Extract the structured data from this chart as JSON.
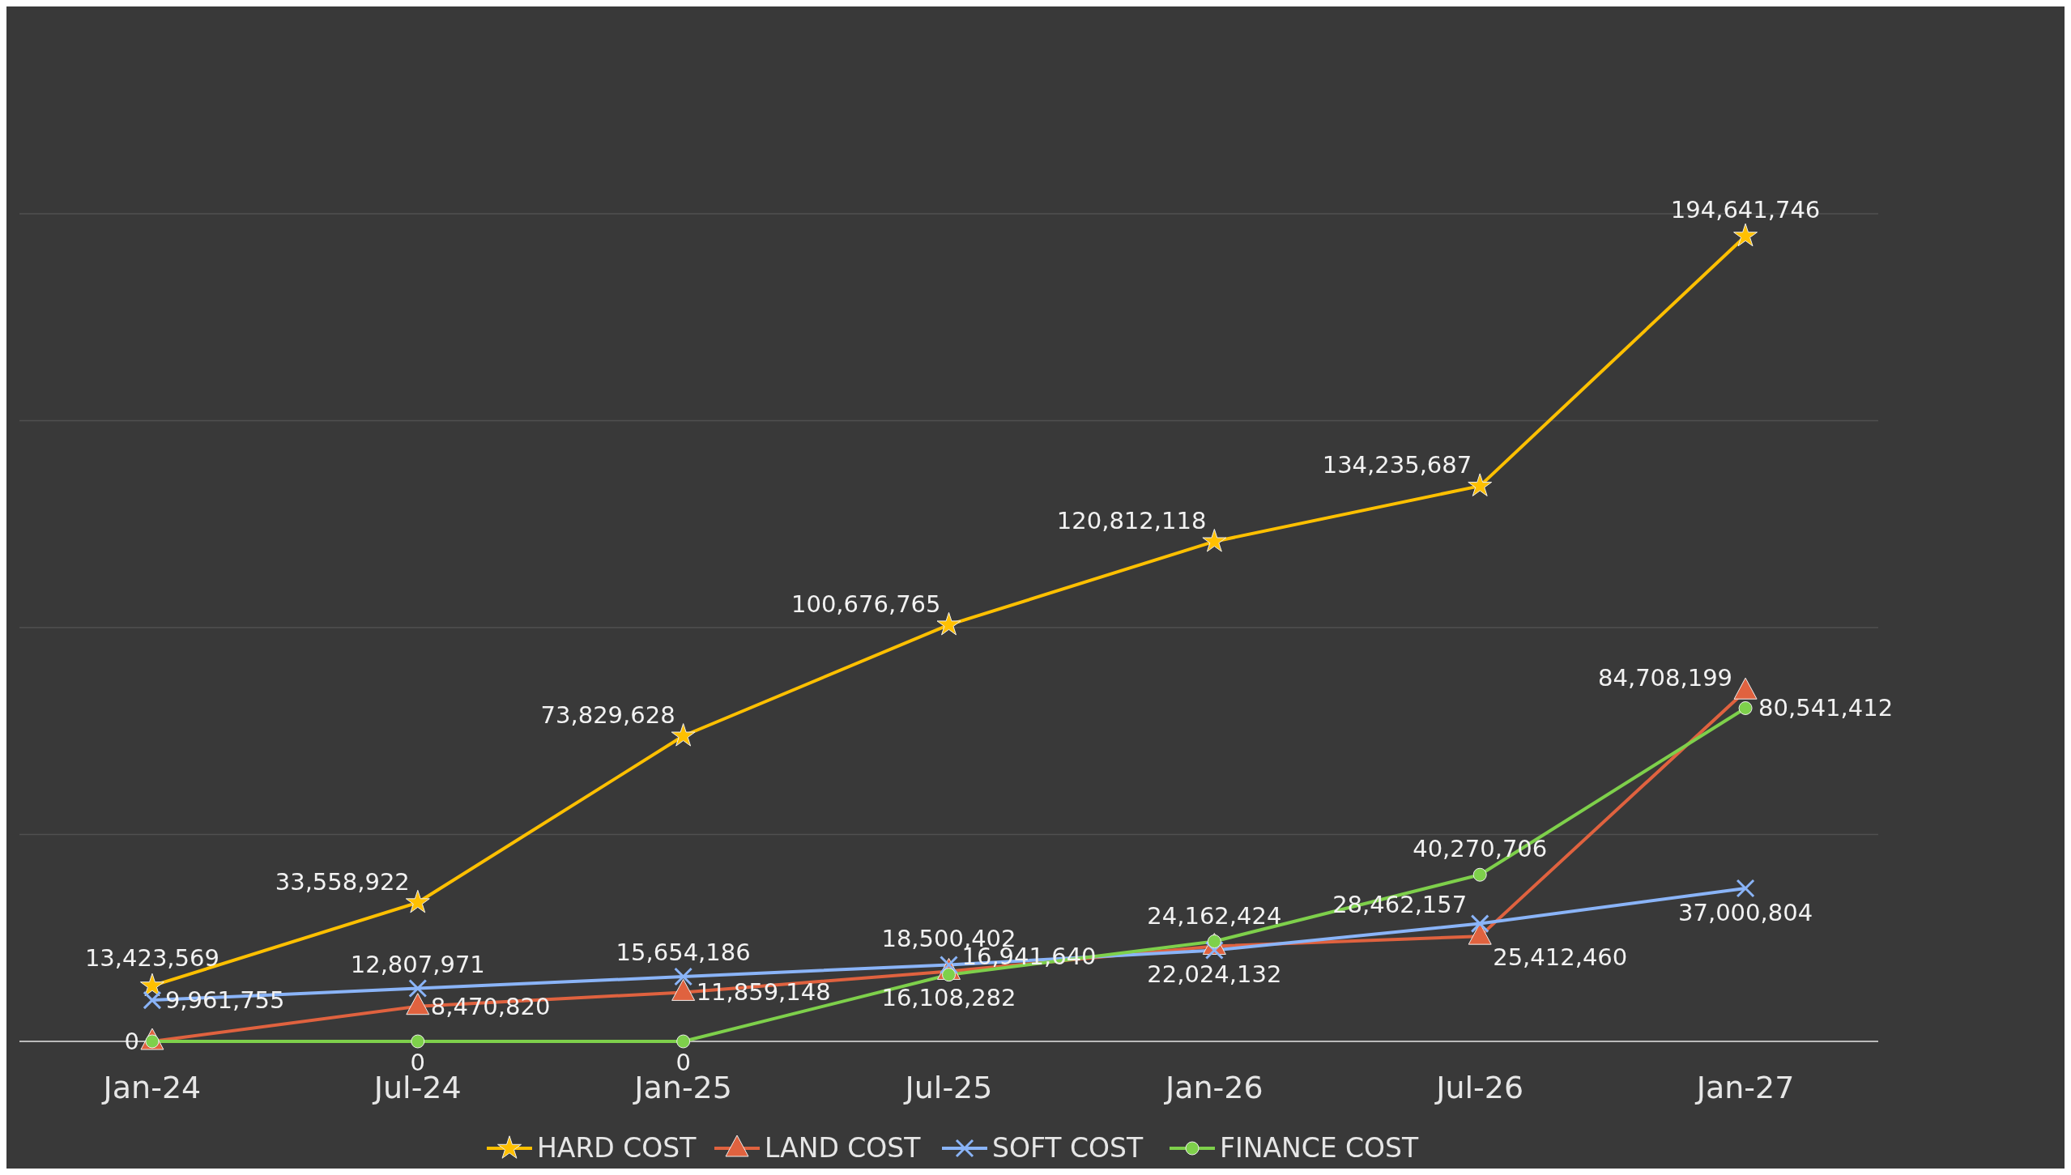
{
  "chart_data": {
    "type": "line",
    "categories": [
      "Jan-24",
      "Jul-24",
      "Jan-25",
      "Jul-25",
      "Jan-26",
      "Jul-26",
      "Jan-27"
    ],
    "tick_labels": "x",
    "grid": "y",
    "legend": "bottom",
    "line_style": "solid",
    "series": [
      {
        "name": "HARD COST",
        "color": "#ffc000",
        "marker": "star",
        "values": [
          13423569,
          33558922,
          73829628,
          100676765,
          120812118,
          134235687,
          194641746
        ],
        "value_labels": [
          "13,423,569",
          "33,558,922",
          "73,829,628",
          "100,676,765",
          "120,812,118",
          "134,235,687",
          "194,641,746"
        ]
      },
      {
        "name": "LAND COST",
        "color": "#e0623f",
        "marker": "triangle",
        "values": [
          0,
          8470820,
          11859148,
          16941640,
          23000000,
          25412460,
          84708199
        ],
        "value_labels": [
          null,
          "8,470,820",
          "11,859,148",
          "16,941,640",
          null,
          "25,412,460",
          "84,708,199"
        ]
      },
      {
        "name": "SOFT COST",
        "color": "#8ab4f8",
        "marker": "cross",
        "values": [
          9961755,
          12807971,
          15654186,
          18500402,
          22024132,
          28462157,
          37000804
        ],
        "value_labels": [
          "9,961,755",
          "12,807,971",
          "15,654,186",
          "18,500,402",
          "22,024,132",
          "28,462,157",
          "37,000,804"
        ]
      },
      {
        "name": "FINANCE COST",
        "color": "#7ed04b",
        "marker": "circle",
        "values": [
          0,
          0,
          0,
          16108282,
          24162424,
          40270706,
          80541412
        ],
        "value_labels": [
          "0",
          "0",
          "0",
          "16,108,282",
          "24,162,424",
          "40,270,706",
          "80,541,412"
        ]
      }
    ]
  }
}
